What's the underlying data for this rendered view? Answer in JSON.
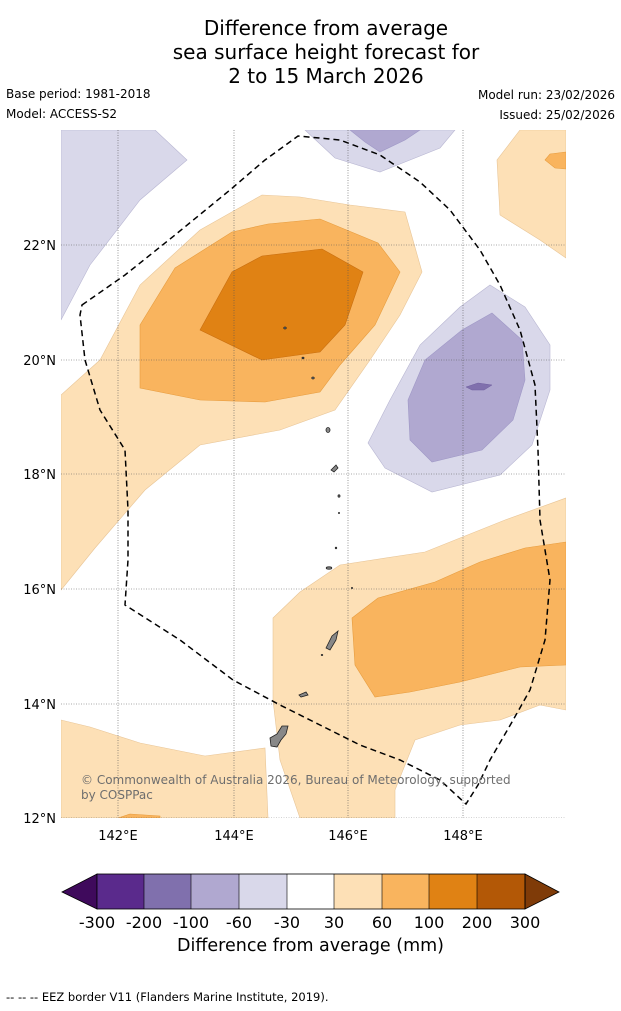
{
  "title": {
    "line1": "Difference from average",
    "line2": "sea surface height forecast for",
    "line3": "2 to 15 March 2026"
  },
  "meta": {
    "base_period": "Base period: 1981-2018",
    "model": "Model: ACCESS-S2",
    "model_run": "Model run: 23/02/2026",
    "issued": "Issued: 25/02/2026"
  },
  "map": {
    "lon_labels": [
      "142°E",
      "144°E",
      "146°E",
      "148°E"
    ],
    "lat_labels": [
      "22°N",
      "20°N",
      "18°N",
      "16°N",
      "14°N",
      "12°N"
    ],
    "copyright_line1": "© Commonwealth of Australia 2026, Bureau of Meteorology, supported",
    "copyright_line2": "by COSPPac"
  },
  "colorbar": {
    "title": "Difference from average (mm)",
    "tick_labels": [
      "-300",
      "-200",
      "-100",
      "-60",
      "-30",
      "30",
      "60",
      "100",
      "200",
      "300"
    ],
    "colors": [
      "#3f0a5c",
      "#5a2a8c",
      "#8070ad",
      "#b0a8d0",
      "#d9d8ea",
      "#ffffff",
      "#fde0b6",
      "#f9b45e",
      "#e08214",
      "#b35806",
      "#7f3b08"
    ]
  },
  "footer": {
    "legend_text": "--  --  -- EEZ border V11 (Flanders Marine Institute, 2019)."
  }
}
